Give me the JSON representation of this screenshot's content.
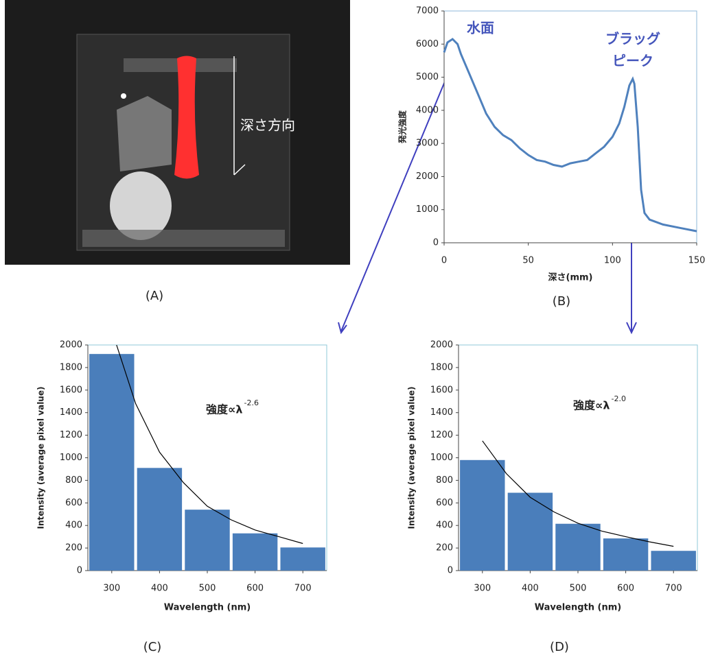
{
  "photo": {
    "annotation": "深さ方向",
    "caption": "(A)"
  },
  "chart_data": [
    {
      "type": "line",
      "caption": "(B)",
      "x_label": "深さ(mm)",
      "y_label": "発光強度",
      "annotations": [
        "水面",
        "ブラッグ",
        "ピーク"
      ],
      "color": "#4f81bd",
      "x": [
        0,
        2,
        5,
        8,
        10,
        15,
        20,
        25,
        30,
        35,
        40,
        45,
        50,
        55,
        60,
        65,
        70,
        75,
        80,
        85,
        90,
        95,
        100,
        104,
        107,
        110,
        112,
        113,
        115,
        117,
        119,
        122,
        130,
        140,
        150
      ],
      "values": [
        5750,
        6050,
        6150,
        6000,
        5700,
        5100,
        4500,
        3900,
        3500,
        3250,
        3100,
        2850,
        2650,
        2500,
        2450,
        2350,
        2300,
        2400,
        2450,
        2500,
        2700,
        2900,
        3200,
        3600,
        4100,
        4750,
        4950,
        4800,
        3500,
        1600,
        900,
        700,
        550,
        450,
        350
      ],
      "xlim": [
        0,
        150
      ],
      "xticks": [
        0,
        50,
        100,
        150
      ],
      "ylim": [
        0,
        7000
      ],
      "yticks": [
        0,
        1000,
        2000,
        3000,
        4000,
        5000,
        6000,
        7000
      ]
    },
    {
      "type": "bar",
      "caption": "(C)",
      "x_label": "Wavelength (nm)",
      "y_label": "Intensity (average pixel value)",
      "annotation": "強度∝λ",
      "exponent": "-2.6",
      "color": "#4a7ebb",
      "x": [
        300,
        400,
        500,
        600,
        700
      ],
      "values": [
        1920,
        910,
        540,
        330,
        205
      ],
      "fit": {
        "color": "#000000",
        "x": [
          310,
          350,
          400,
          450,
          500,
          550,
          600,
          650,
          700
        ],
        "values": [
          2000,
          1480,
          1050,
          780,
          570,
          450,
          360,
          300,
          240
        ]
      },
      "xlim": [
        250,
        750
      ],
      "xticks": [
        300,
        400,
        500,
        600,
        700
      ],
      "ylim": [
        0,
        2000
      ],
      "yticks": [
        0,
        200,
        400,
        600,
        800,
        1000,
        1200,
        1400,
        1600,
        1800,
        2000
      ]
    },
    {
      "type": "bar",
      "caption": "(D)",
      "x_label": "Wavelength (nm)",
      "y_label": "Intensity (average pixel value)",
      "annotation": "強度∝λ",
      "exponent": "-2.0",
      "color": "#4a7ebb",
      "x": [
        300,
        400,
        500,
        600,
        700
      ],
      "values": [
        980,
        690,
        415,
        285,
        175
      ],
      "fit": {
        "color": "#000000",
        "x": [
          300,
          350,
          400,
          450,
          500,
          550,
          600,
          650,
          700
        ],
        "values": [
          1150,
          860,
          650,
          520,
          420,
          350,
          300,
          255,
          215
        ]
      },
      "xlim": [
        250,
        750
      ],
      "xticks": [
        300,
        400,
        500,
        600,
        700
      ],
      "ylim": [
        0,
        2000
      ],
      "yticks": [
        0,
        200,
        400,
        600,
        800,
        1000,
        1200,
        1400,
        1600,
        1800,
        2000
      ]
    }
  ]
}
